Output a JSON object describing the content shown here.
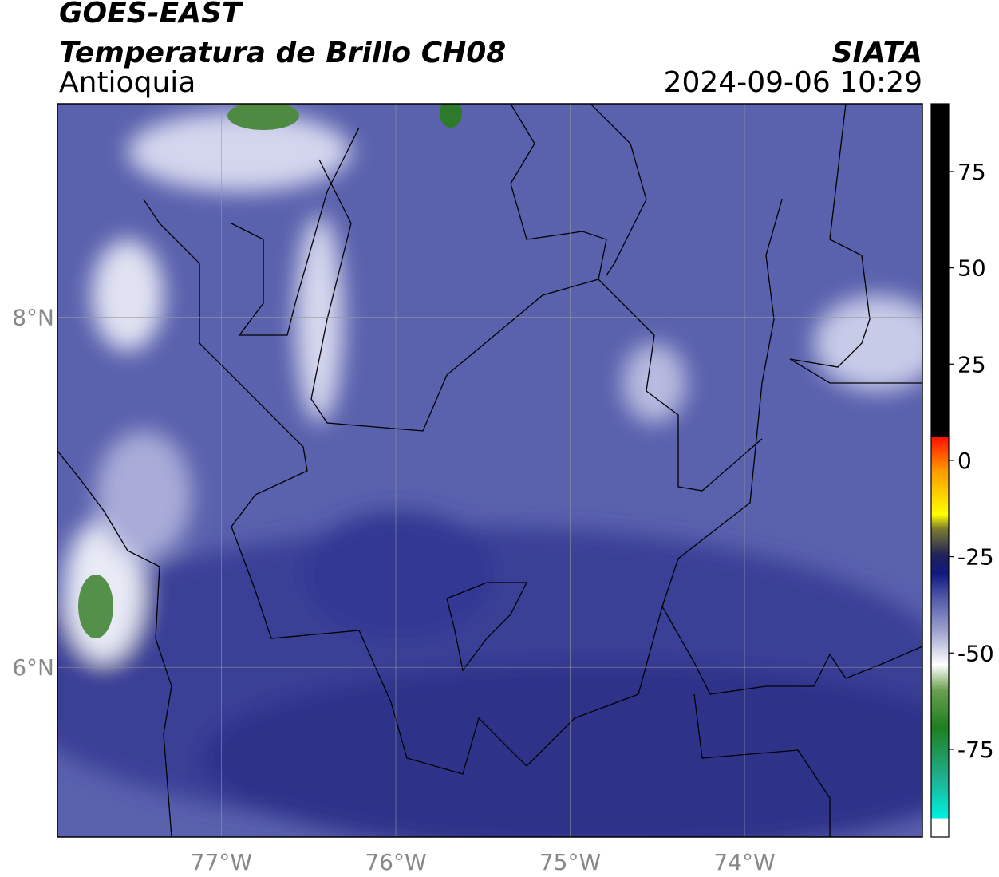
{
  "header": {
    "title": "GOES-EAST",
    "subtitle": "Temperatura de Brillo CH08",
    "region": "Antioquia",
    "source": "SIATA",
    "datetime": "2024-09-06 10:29"
  },
  "map": {
    "xlim": [
      -77.94,
      -72.98
    ],
    "ylim": [
      5.03,
      9.22
    ],
    "xticks": [
      {
        "value": -77,
        "label": "77°W"
      },
      {
        "value": -76,
        "label": "76°W"
      },
      {
        "value": -75,
        "label": "75°W"
      },
      {
        "value": -74,
        "label": "74°W"
      }
    ],
    "yticks": [
      {
        "value": 6,
        "label": "6°N"
      },
      {
        "value": 8,
        "label": "8°N"
      }
    ],
    "grid": true
  },
  "colorbar": {
    "lim": [
      -97.8,
      92.6
    ],
    "ticks": [
      -75,
      -50,
      -25,
      0,
      25,
      50,
      75
    ]
  }
}
